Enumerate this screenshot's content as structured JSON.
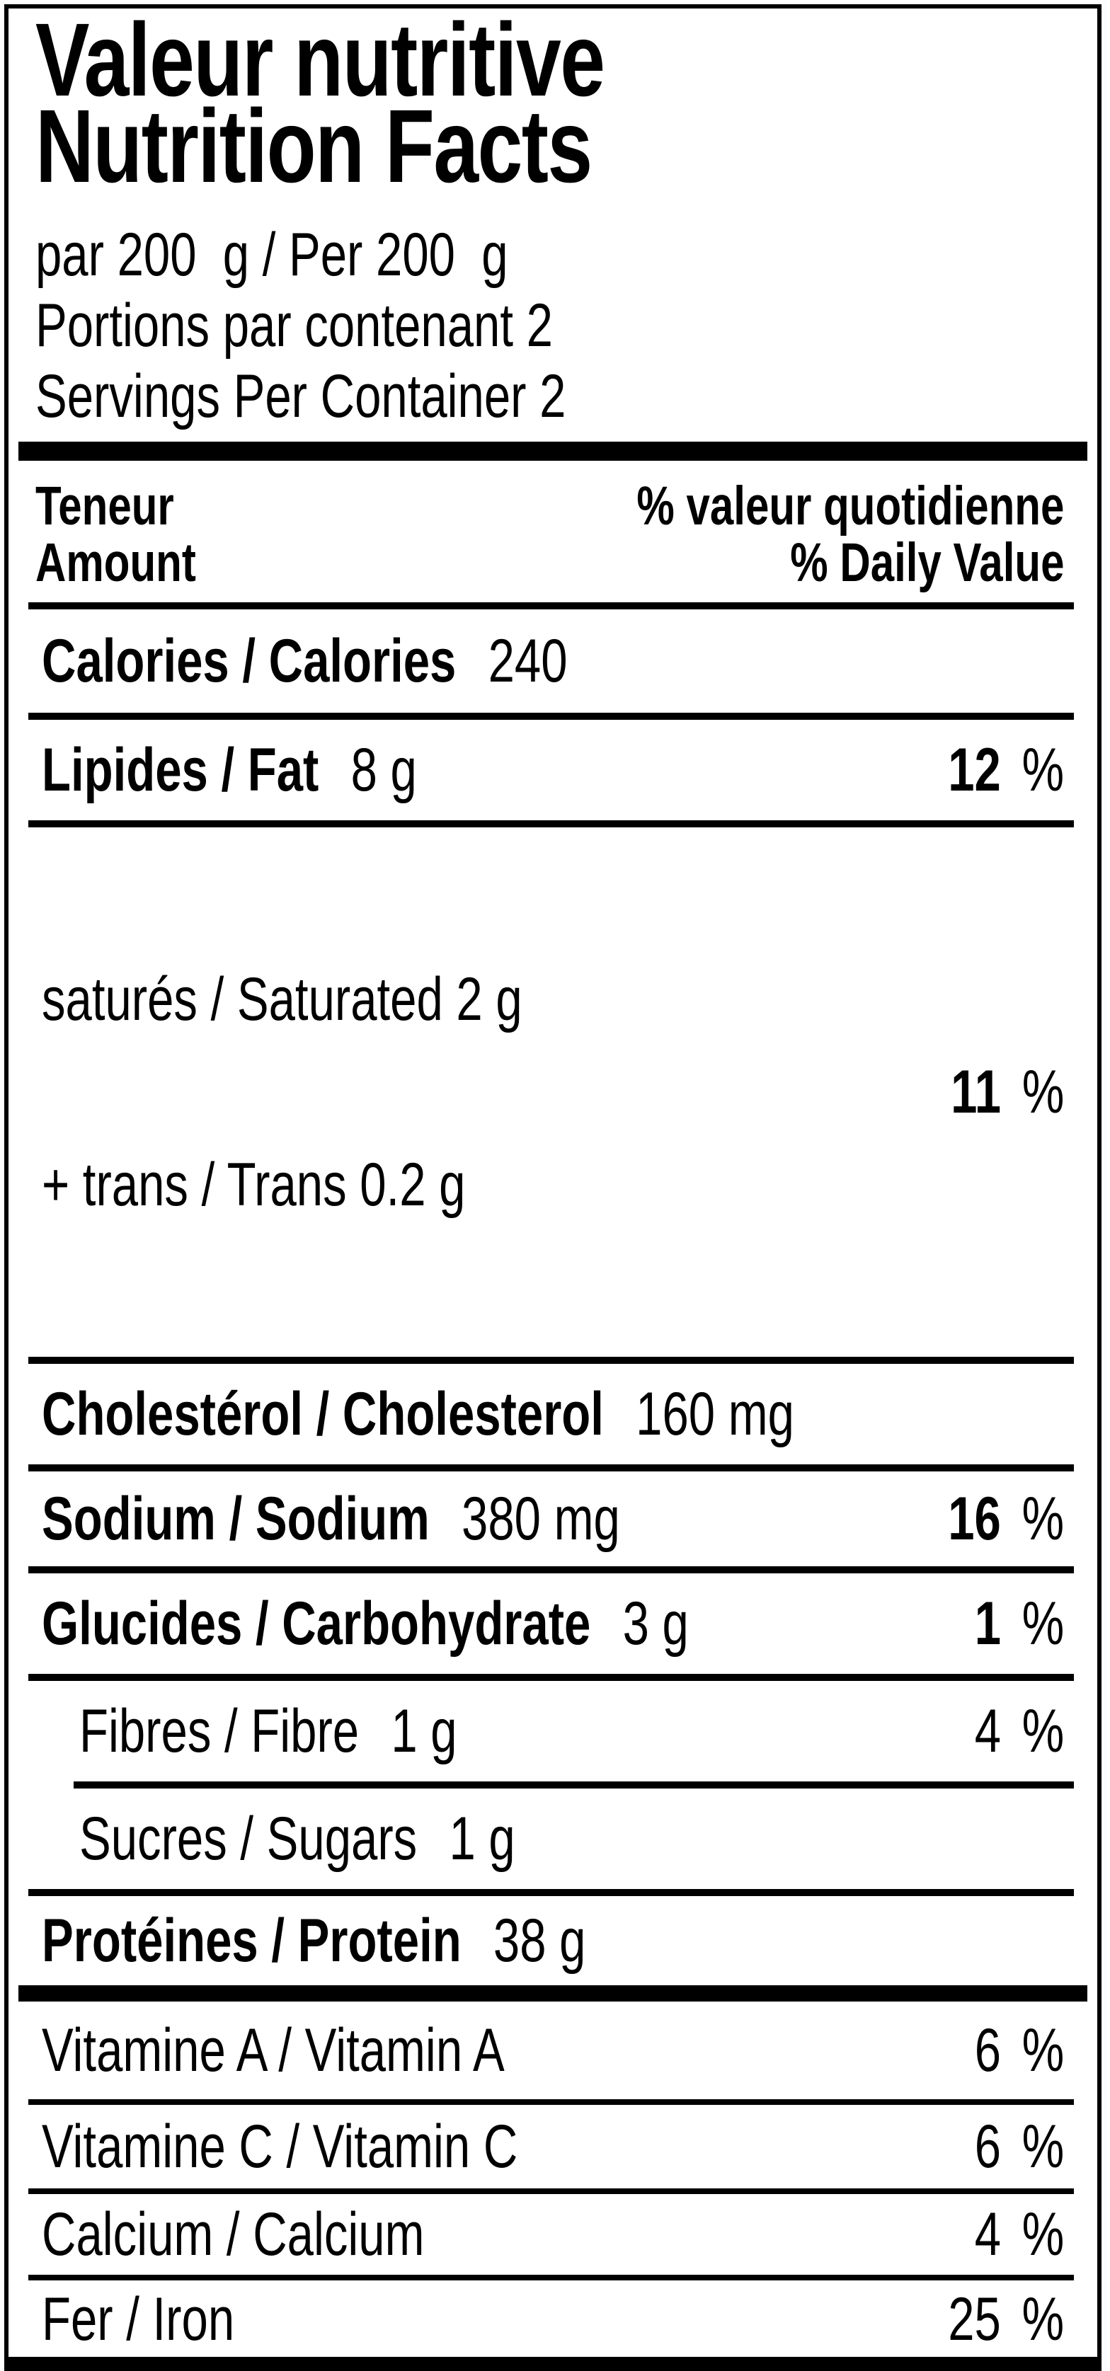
{
  "percent_sign": "%",
  "colors": {
    "ink": "#000000",
    "background": "#ffffff"
  },
  "title": {
    "line1": "Valeur nutritive",
    "line2": "Nutrition Facts"
  },
  "serving": {
    "per": "par 200  g / Per 200  g",
    "portions_fr": "Portions par contenant 2",
    "servings_en": "Servings Per Container 2"
  },
  "header": {
    "amount_fr": "Teneur",
    "amount_en": "Amount",
    "dv_fr": "% valeur quotidienne",
    "dv_en": "% Daily Value"
  },
  "rows": {
    "calories": {
      "label": "Calories / Calories",
      "value": "240"
    },
    "fat": {
      "label": "Lipides / Fat",
      "value": "8 g",
      "dv": "12"
    },
    "satfat": {
      "line1": "saturés / Saturated 2 g",
      "line2": "+ trans / Trans 0.2 g",
      "dv": "11"
    },
    "cholesterol": {
      "label": "Cholestérol / Cholesterol",
      "value": "160 mg"
    },
    "sodium": {
      "label": "Sodium / Sodium",
      "value": "380 mg",
      "dv": "16"
    },
    "carb": {
      "label": "Glucides / Carbohydrate",
      "value": "3 g",
      "dv": "1"
    },
    "fibre": {
      "label": "Fibres / Fibre",
      "value": "1 g",
      "dv": "4"
    },
    "sugars": {
      "label": "Sucres / Sugars",
      "value": "1 g"
    },
    "protein": {
      "label": "Protéines / Protein",
      "value": "38 g"
    },
    "vitamin_a": {
      "label": "Vitamine A / Vitamin A",
      "dv": "6"
    },
    "vitamin_c": {
      "label": "Vitamine C / Vitamin C",
      "dv": "6"
    },
    "calcium": {
      "label": "Calcium / Calcium",
      "dv": "4"
    },
    "iron": {
      "label": "Fer / Iron",
      "dv": "25"
    }
  }
}
